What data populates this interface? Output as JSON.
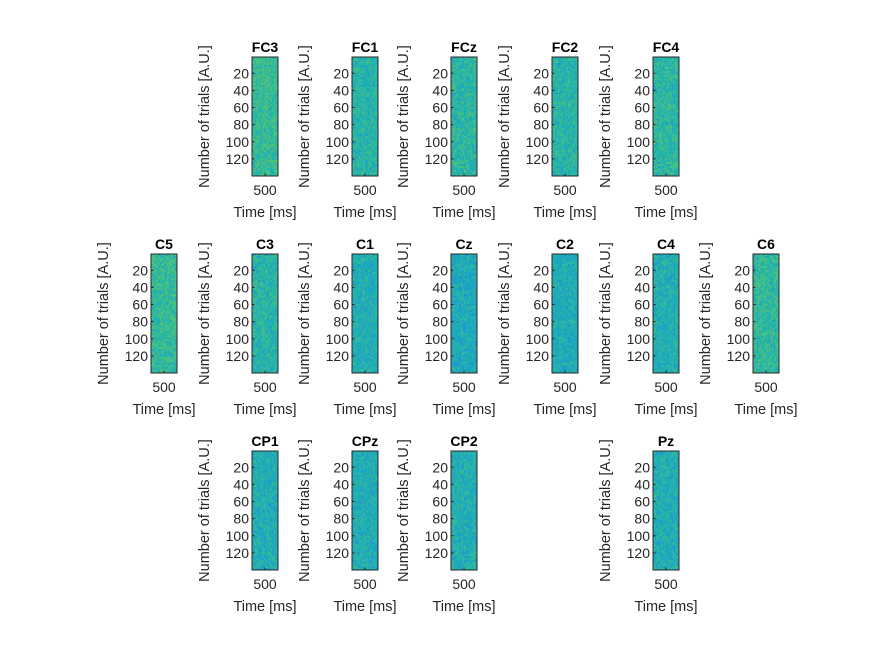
{
  "chart_data": {
    "type": "heatmap",
    "title": "",
    "xlabel": "Time [ms]",
    "ylabel": "Number of trials [A.U.]",
    "x_ticks": [
      500
    ],
    "y_ticks": [
      20,
      40,
      60,
      80,
      100,
      120
    ],
    "xlim": [
      0,
      1000
    ],
    "ylim": [
      1,
      140
    ],
    "y_reversed": true,
    "grid": false,
    "colormap": [
      "#3e26a8",
      "#1e8ad8",
      "#1cb0b6",
      "#52c474",
      "#a7c236"
    ],
    "panels": [
      {
        "name": "FC3",
        "row": 0,
        "col": 1,
        "mean": 0.62,
        "spread": 0.16
      },
      {
        "name": "FC1",
        "row": 0,
        "col": 2,
        "mean": 0.55,
        "spread": 0.14
      },
      {
        "name": "FCz",
        "row": 0,
        "col": 3,
        "mean": 0.57,
        "spread": 0.16
      },
      {
        "name": "FC2",
        "row": 0,
        "col": 4,
        "mean": 0.55,
        "spread": 0.14
      },
      {
        "name": "FC4",
        "row": 0,
        "col": 5,
        "mean": 0.57,
        "spread": 0.15
      },
      {
        "name": "C5",
        "row": 1,
        "col": 0,
        "mean": 0.62,
        "spread": 0.15
      },
      {
        "name": "C3",
        "row": 1,
        "col": 1,
        "mean": 0.55,
        "spread": 0.15
      },
      {
        "name": "C1",
        "row": 1,
        "col": 2,
        "mean": 0.5,
        "spread": 0.13
      },
      {
        "name": "Cz",
        "row": 1,
        "col": 3,
        "mean": 0.47,
        "spread": 0.14
      },
      {
        "name": "C2",
        "row": 1,
        "col": 4,
        "mean": 0.48,
        "spread": 0.13
      },
      {
        "name": "C4",
        "row": 1,
        "col": 5,
        "mean": 0.5,
        "spread": 0.14
      },
      {
        "name": "C6",
        "row": 1,
        "col": 6,
        "mean": 0.6,
        "spread": 0.16
      },
      {
        "name": "CP1",
        "row": 2,
        "col": 1,
        "mean": 0.5,
        "spread": 0.14
      },
      {
        "name": "CPz",
        "row": 2,
        "col": 2,
        "mean": 0.49,
        "spread": 0.13
      },
      {
        "name": "CP2",
        "row": 2,
        "col": 3,
        "mean": 0.5,
        "spread": 0.14
      },
      {
        "name": "Pz",
        "row": 2,
        "col": 5,
        "mean": 0.5,
        "spread": 0.14
      }
    ]
  }
}
